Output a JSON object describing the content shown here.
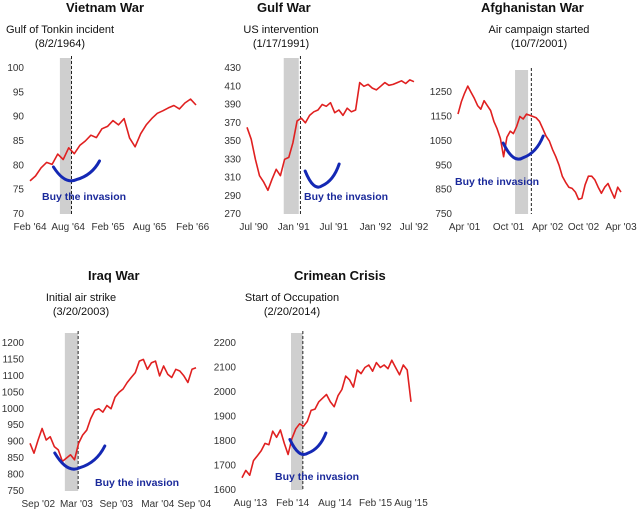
{
  "buy_label": "Buy the invasion",
  "colors": {
    "line": "#e02020",
    "shade": "#cfcfcf",
    "smile": "#1428b4",
    "buy_text": "#1b2a9b"
  },
  "chart_data": [
    {
      "type": "line",
      "title": "Vietnam War",
      "event_label": "Gulf of Tonkin incident",
      "event_date": "(8/2/1964)",
      "x_ticks": [
        "Feb '64",
        "Aug '64",
        "Feb '65",
        "Aug '65",
        "Feb '66"
      ],
      "ylim": [
        70,
        100
      ],
      "y_ticks": [
        70,
        75,
        80,
        85,
        90,
        95,
        100
      ],
      "grid": false,
      "series": [
        {
          "values": [
            76.8,
            77.8,
            79.5,
            80.6,
            80.2,
            82.3,
            81.2,
            83.6,
            82.4,
            84.1,
            85.0,
            86.2,
            85.7,
            87.5,
            88.0,
            89.2,
            88.3,
            89.6,
            85.6,
            83.8,
            86.5,
            88.3,
            89.6,
            90.7,
            91.2,
            91.8,
            92.3,
            91.6,
            92.8,
            93.6,
            92.4
          ]
        }
      ]
    },
    {
      "type": "line",
      "title": "Gulf War",
      "event_label": "US intervention",
      "event_date": "(1/17/1991)",
      "x_ticks": [
        "Jul '90",
        "Jan '91",
        "Jul '91",
        "Jan '92",
        "Jul '92"
      ],
      "ylim": [
        270,
        430
      ],
      "y_ticks": [
        270,
        290,
        310,
        330,
        350,
        370,
        390,
        410,
        430
      ],
      "grid": false,
      "series": [
        {
          "values": [
            365,
            352,
            330,
            312,
            305,
            296,
            308,
            319,
            312,
            330,
            332,
            348,
            372,
            375,
            370,
            378,
            382,
            384,
            390,
            388,
            392,
            381,
            384,
            378,
            386,
            382,
            384,
            414,
            410,
            412,
            408,
            406,
            410,
            414,
            411,
            412,
            414,
            416,
            413,
            417,
            415
          ]
        }
      ]
    },
    {
      "type": "line",
      "title": "Afghanistan War",
      "event_label": "Air campaign started",
      "event_date": "(10/7/2001)",
      "x_ticks": [
        "Apr '01",
        "Oct '01",
        "Apr '02",
        "Oct '02",
        "Apr '03"
      ],
      "ylim": [
        750,
        1300
      ],
      "y_ticks": [
        750,
        850,
        950,
        1050,
        1150,
        1250
      ],
      "grid": false,
      "series": [
        {
          "values": [
            1160,
            1210,
            1245,
            1275,
            1250,
            1225,
            1195,
            1180,
            1215,
            1195,
            1175,
            1130,
            1100,
            1060,
            985,
            1065,
            1090,
            1080,
            1110,
            1150,
            1140,
            1160,
            1155,
            1150,
            1145,
            1130,
            1100,
            1070,
            1050,
            1015,
            985,
            950,
            905,
            880,
            860,
            855,
            840,
            810,
            815,
            870,
            905,
            905,
            890,
            860,
            835,
            860,
            875,
            845,
            815,
            860,
            840
          ]
        }
      ]
    },
    {
      "type": "line",
      "title": "Iraq War",
      "event_label": "Initial air strike",
      "event_date": "(3/20/2003)",
      "x_ticks": [
        "Sep '02",
        "Mar '03",
        "Sep '03",
        "Mar '04",
        "Sep '04"
      ],
      "ylim": [
        750,
        1200
      ],
      "y_ticks": [
        750,
        800,
        850,
        900,
        950,
        1000,
        1050,
        1100,
        1150,
        1200
      ],
      "grid": false,
      "series": [
        {
          "values": [
            895,
            865,
            905,
            940,
            905,
            915,
            885,
            875,
            840,
            850,
            860,
            845,
            895,
            920,
            935,
            970,
            995,
            1000,
            990,
            1010,
            1000,
            1035,
            1050,
            1060,
            1080,
            1095,
            1110,
            1145,
            1150,
            1120,
            1140,
            1145,
            1100,
            1130,
            1105,
            1095,
            1120,
            1115,
            1100,
            1080,
            1120,
            1125
          ]
        }
      ]
    },
    {
      "type": "line",
      "title": "Crimean Crisis",
      "event_label": "Start of Occupation",
      "event_date": "(2/20/2014)",
      "x_ticks": [
        "Aug '13",
        "Feb '14",
        "Aug '14",
        "Feb '15",
        "Aug '15"
      ],
      "ylim": [
        1600,
        2200
      ],
      "y_ticks": [
        1600,
        1700,
        1800,
        1900,
        2000,
        2100,
        2200
      ],
      "grid": false,
      "series": [
        {
          "values": [
            1650,
            1680,
            1660,
            1720,
            1740,
            1760,
            1790,
            1785,
            1840,
            1815,
            1845,
            1790,
            1745,
            1810,
            1850,
            1870,
            1860,
            1880,
            1925,
            1930,
            1960,
            1975,
            1990,
            1960,
            1940,
            1985,
            2010,
            2065,
            2050,
            2020,
            2090,
            2075,
            2100,
            2110,
            2085,
            2120,
            2100,
            2110,
            2095,
            2130,
            2100,
            2070,
            2110,
            2090,
            1960
          ]
        }
      ]
    }
  ]
}
